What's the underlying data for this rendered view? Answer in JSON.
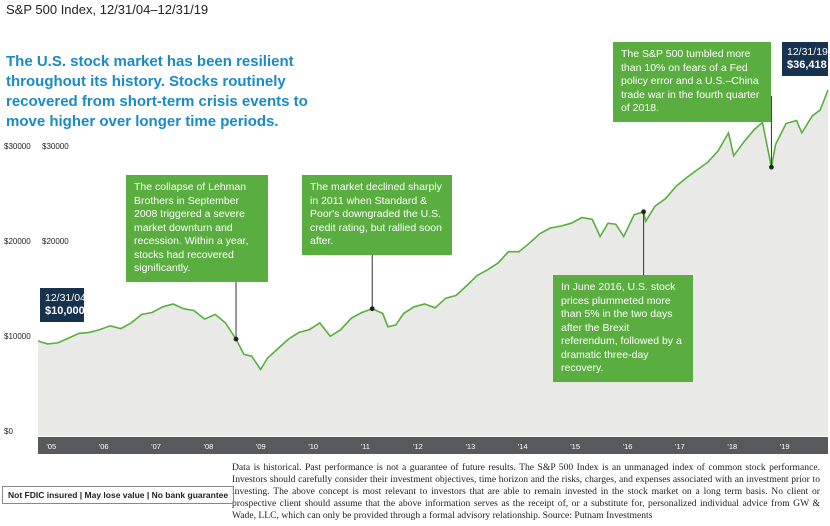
{
  "title": "S&P 500 Index, 12/31/04–12/31/19",
  "headline": "The U.S. stock market has been resilient throughout its history. Stocks routinely recovered from short-term crisis events to move higher over longer time periods.",
  "colors": {
    "area": "#e9e9e7",
    "line": "#5aae3f",
    "note": "#5aae3f",
    "tag": "#17324f",
    "axis_band": "#58595b",
    "headline": "#1a8ac7"
  },
  "start_tag": {
    "date": "12/31/04",
    "value": "$10,000"
  },
  "end_tag": {
    "date": "12/31/19",
    "value": "$36,418"
  },
  "notes": {
    "lehman": "The collapse of Lehman Brothers in September 2008 triggered a severe market downturn and recession. Within a year, stocks had recovered significantly.",
    "downgrade": "The market declined sharply in 2011 when Standard & Poor's downgraded the U.S. credit rating, but rallied soon after.",
    "brexit": "In June 2016, U.S. stock prices plummeted more than 5% in the two days after the Brexit referendum, followed by a dramatic three-day recovery.",
    "trade_war": "The S&P 500 tumbled more than 10% on fears of a Fed policy error and a U.S.–China trade war in the fourth quarter of 2018."
  },
  "disclaimer": "Data is historical. Past performance is not a guarantee of future results. The S&P 500 Index is an unmanaged index of common stock performance. Investors should carefully consider their investment objectives, time horizon and the risks, charges, and expenses associated with an investment prior to investing. The above concept is most relevant to investors that are able to remain invested in the stock market on a long term basis. No client or prospective client should assume that the above information serves as the receipt of, or a substitute for, personalized individual advice from GW & Wade, LLC, which can only be provided through a formal advisory relationship. Source: Putnam Investments",
  "fdic": "Not FDIC insured | May lose value | No bank guarantee",
  "chart_data": {
    "type": "area",
    "title": "S&P 500 Index, 12/31/04–12/31/19",
    "ylim": [
      0,
      40000
    ],
    "y_ticks": [
      0,
      10000,
      20000,
      30000
    ],
    "y_tick_labels": [
      "$0",
      "$10000",
      "$20000",
      "$30000"
    ],
    "y_tick_labels_secondary": [
      "",
      "",
      "$20000",
      "$30000"
    ],
    "x_tick_labels": [
      "'05",
      "'06",
      "'07",
      "'08",
      "'09",
      "'10",
      "'11",
      "'12",
      "'13",
      "'14",
      "'15",
      "'16",
      "'17",
      "'18",
      "'19"
    ],
    "x_range": [
      2004.92,
      2020.0
    ],
    "grid": false,
    "series": [
      {
        "x": [
          2004.92,
          2005.1,
          2005.3,
          2005.5,
          2005.7,
          2005.9,
          2006.1,
          2006.3,
          2006.5,
          2006.7,
          2006.9,
          2007.1,
          2007.3,
          2007.5,
          2007.7,
          2007.9,
          2008.1,
          2008.3,
          2008.5,
          2008.7,
          2008.85,
          2009.0,
          2009.17,
          2009.3,
          2009.5,
          2009.7,
          2009.9,
          2010.1,
          2010.3,
          2010.5,
          2010.7,
          2010.9,
          2011.1,
          2011.3,
          2011.5,
          2011.6,
          2011.75,
          2011.9,
          2012.1,
          2012.3,
          2012.5,
          2012.7,
          2012.9,
          2013.1,
          2013.3,
          2013.5,
          2013.7,
          2013.9,
          2014.1,
          2014.3,
          2014.5,
          2014.7,
          2014.9,
          2015.1,
          2015.3,
          2015.5,
          2015.65,
          2015.8,
          2015.95,
          2016.1,
          2016.3,
          2016.48,
          2016.52,
          2016.7,
          2016.9,
          2017.1,
          2017.3,
          2017.5,
          2017.7,
          2017.9,
          2018.1,
          2018.2,
          2018.4,
          2018.6,
          2018.75,
          2018.92,
          2019.0,
          2019.2,
          2019.4,
          2019.5,
          2019.7,
          2019.85,
          2020.0
        ],
        "y": [
          10000,
          9700,
          9800,
          10300,
          10800,
          10900,
          11200,
          11600,
          11300,
          11900,
          12800,
          13000,
          13600,
          13900,
          13400,
          13200,
          12300,
          12800,
          11900,
          10200,
          8600,
          8400,
          7000,
          8200,
          9200,
          10200,
          10900,
          11200,
          11900,
          10500,
          11200,
          12400,
          13000,
          13400,
          12900,
          11500,
          11700,
          12900,
          13600,
          13900,
          13500,
          14500,
          14800,
          15800,
          16900,
          17500,
          18200,
          19400,
          19400,
          20300,
          21300,
          21900,
          22100,
          22400,
          23000,
          22800,
          21000,
          22400,
          22300,
          21000,
          23300,
          23600,
          22600,
          24200,
          25000,
          26300,
          27200,
          28000,
          28800,
          30000,
          31900,
          29500,
          31000,
          32300,
          33000,
          28300,
          30700,
          32900,
          33200,
          31900,
          33700,
          34300,
          36418
        ]
      }
    ],
    "annotations": [
      {
        "x": 2008.7,
        "text": "The collapse of Lehman Brothers in September 2008 triggered a severe market downturn and recession. Within a year, stocks had recovered significantly."
      },
      {
        "x": 2011.3,
        "text": "The market declined sharply in 2011 when Standard & Poor's downgraded the U.S. credit rating, but rallied soon after."
      },
      {
        "x": 2016.48,
        "text": "In June 2016, U.S. stock prices plummeted more than 5% in the two days after the Brexit referendum, followed by a dramatic three-day recovery."
      },
      {
        "x": 2018.92,
        "text": "The S&P 500 tumbled more than 10% on fears of a Fed policy error and a U.S.–China trade war in the fourth quarter of 2018."
      }
    ]
  }
}
